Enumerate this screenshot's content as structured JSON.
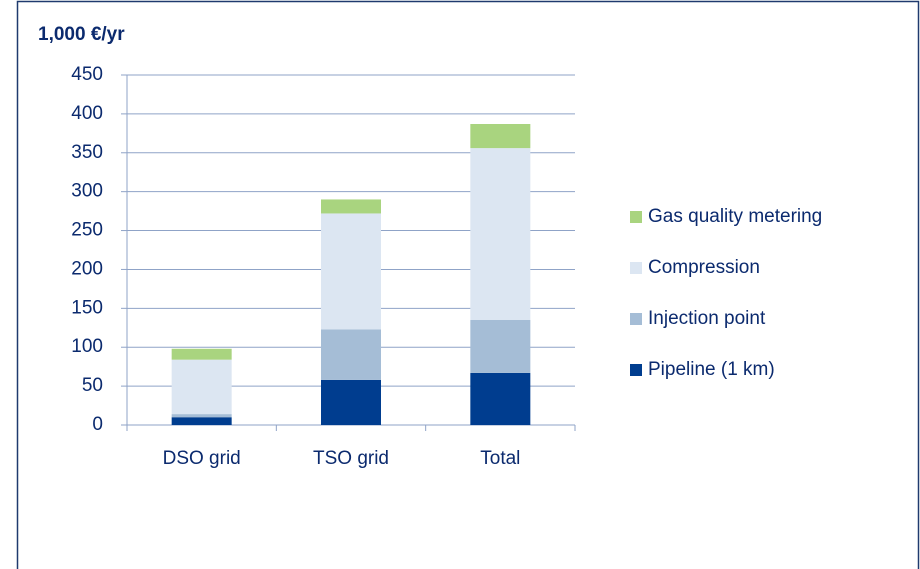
{
  "chart_data": {
    "type": "stacked_bar",
    "title": "1,000 €/yr",
    "categories": [
      "DSO grid",
      "TSO grid",
      "Total"
    ],
    "series": [
      {
        "name": "Pipeline (1 km)",
        "color": "#003d8f",
        "values": [
          10,
          58,
          67
        ]
      },
      {
        "name": "Injection point",
        "color": "#a5bdd6",
        "values": [
          4,
          65,
          68
        ]
      },
      {
        "name": "Compression",
        "color": "#dce6f2",
        "values": [
          70,
          149,
          221
        ]
      },
      {
        "name": "Gas quality metering",
        "color": "#a9d47f",
        "values": [
          14,
          18,
          31
        ]
      }
    ],
    "ylim": [
      0,
      450
    ],
    "yticks": [
      0,
      50,
      100,
      150,
      200,
      250,
      300,
      350,
      400,
      450
    ],
    "grid": true
  }
}
